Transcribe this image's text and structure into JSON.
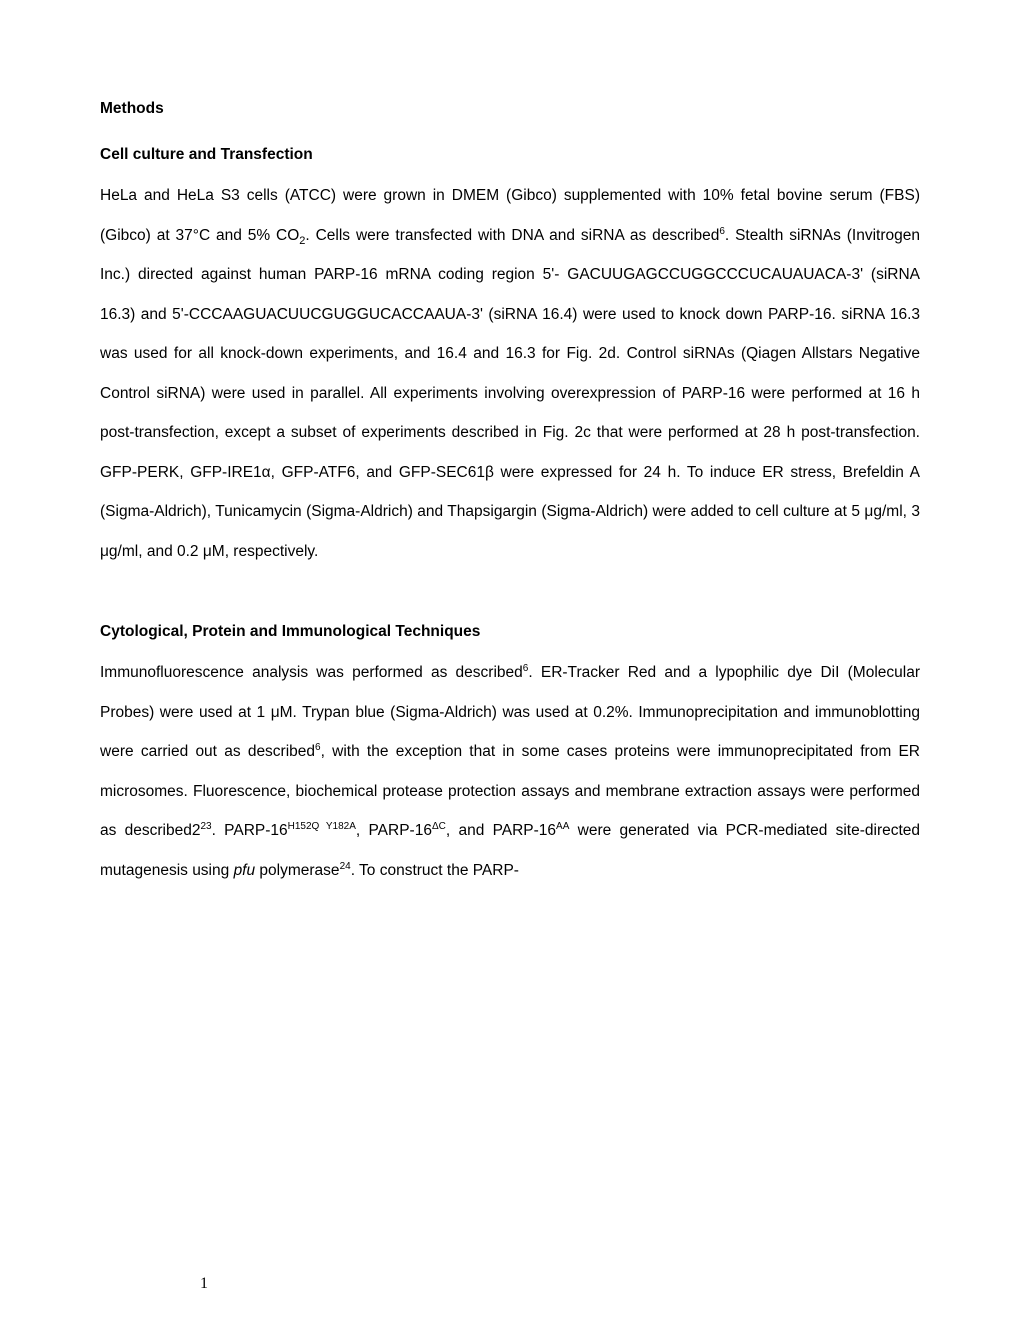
{
  "page": {
    "number": "1",
    "background_color": "#ffffff",
    "text_color": "#000000",
    "font_family": "Arial",
    "font_size_pt": 12,
    "line_spacing": 2.55
  },
  "heading": "Methods",
  "section1": {
    "title": "Cell culture and Transfection",
    "text_parts": {
      "p1": "HeLa and HeLa S3 cells (ATCC) were grown in DMEM (Gibco) supplemented with 10% fetal bovine serum (FBS) (Gibco) at 37°C and 5% CO",
      "sub1": "2",
      "p2": ".  Cells were transfected with DNA and siRNA as described",
      "sup1": "6",
      "p3": ".  Stealth siRNAs (Invitrogen Inc.) directed against human PARP-16 mRNA coding region 5'- GACUUGAGCCUGGCCCUCAUAUACA-3' (siRNA 16.3) and 5'-CCCAAGUACUUCGUGGUCACCAAUA-3' (siRNA 16.4) were used to knock down PARP-16. siRNA 16.3 was used for all knock-down experiments, and 16.4 and 16.3 for Fig. 2d.  Control siRNAs (Qiagen Allstars Negative Control siRNA) were used in parallel.  All experiments involving overexpression of PARP-16 were performed at 16 h post-transfection, except a subset of experiments described in Fig. 2c that were performed at 28 h post-transfection. GFP-PERK, GFP-IRE1α, GFP-ATF6, and GFP-SEC61β were expressed for 24 h.  To induce ER stress, Brefeldin A (Sigma-Aldrich), Tunicamycin (Sigma-Aldrich) and Thapsigargin (Sigma-Aldrich) were added to cell culture at 5 μg/ml, 3 μg/ml, and 0.2 μM, respectively."
    }
  },
  "section2": {
    "title": "Cytological, Protein and Immunological Techniques",
    "text_parts": {
      "p1": "Immunofluorescence analysis was performed as described",
      "sup1": "6",
      "p2": ".  ER-Tracker Red and a lypophilic dye DiI (Molecular Probes) were used at 1 μM.  Trypan blue (Sigma-Aldrich) was used at 0.2%.  Immunoprecipitation and immunoblotting were carried out as described",
      "sup2": "6",
      "p3": ", with the exception that in some cases proteins were immunoprecipitated from ER microsomes. Fluorescence, biochemical protease protection assays and membrane extraction assays were performed as described2",
      "sup3": "23",
      "p4": ".  PARP-16",
      "sup4": "H152Q Y182A",
      "p5": ", PARP-16",
      "sup5": "ΔC",
      "p6": ", and PARP-16",
      "sup6": "AA",
      "p7": " were generated via PCR-mediated site-directed mutagenesis using ",
      "italic1": "pfu",
      "p8": " polymerase",
      "sup7": "24",
      "p9": ".  To construct the PARP-"
    }
  }
}
